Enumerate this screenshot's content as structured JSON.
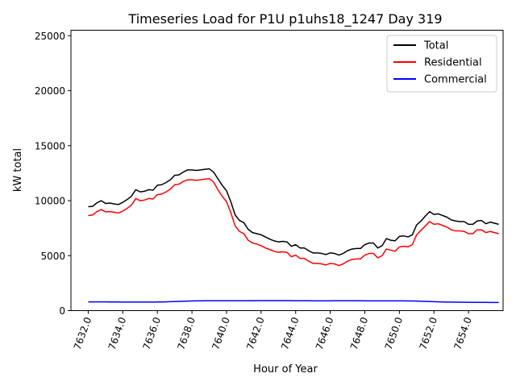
{
  "chart_data": {
    "type": "line",
    "title": "Timeseries Load for P1U p1uhs18_1247  Day 319",
    "xlabel": "Hour of Year",
    "ylabel": "kW total",
    "xlim": [
      7631.0,
      7656.0
    ],
    "ylim": [
      0,
      25500
    ],
    "xticks": [
      {
        "value": 7632,
        "label": "7632.0"
      },
      {
        "value": 7634,
        "label": "7634.0"
      },
      {
        "value": 7636,
        "label": "7636.0"
      },
      {
        "value": 7638,
        "label": "7638.0"
      },
      {
        "value": 7640,
        "label": "7640.0"
      },
      {
        "value": 7642,
        "label": "7642.0"
      },
      {
        "value": 7644,
        "label": "7644.0"
      },
      {
        "value": 7646,
        "label": "7646.0"
      },
      {
        "value": 7648,
        "label": "7648.0"
      },
      {
        "value": 7650,
        "label": "7650.0"
      },
      {
        "value": 7652,
        "label": "7652.0"
      },
      {
        "value": 7654,
        "label": "7654.0"
      }
    ],
    "yticks": [
      {
        "value": 0,
        "label": "0"
      },
      {
        "value": 5000,
        "label": "5000"
      },
      {
        "value": 10000,
        "label": "10000"
      },
      {
        "value": 15000,
        "label": "15000"
      },
      {
        "value": 20000,
        "label": "20000"
      },
      {
        "value": 25000,
        "label": "25000"
      }
    ],
    "legend_position": "top-right",
    "x": [
      7632.0,
      7632.25,
      7632.5,
      7632.75,
      7633.0,
      7633.25,
      7633.5,
      7633.75,
      7634.0,
      7634.25,
      7634.5,
      7634.75,
      7635.0,
      7635.25,
      7635.5,
      7635.75,
      7636.0,
      7636.25,
      7636.5,
      7636.75,
      7637.0,
      7637.25,
      7637.5,
      7637.75,
      7638.0,
      7638.25,
      7638.5,
      7638.75,
      7639.0,
      7639.25,
      7639.5,
      7639.75,
      7640.0,
      7640.25,
      7640.5,
      7640.75,
      7641.0,
      7641.25,
      7641.5,
      7641.75,
      7642.0,
      7642.25,
      7642.5,
      7642.75,
      7643.0,
      7643.25,
      7643.5,
      7643.75,
      7644.0,
      7644.25,
      7644.5,
      7644.75,
      7645.0,
      7645.25,
      7645.5,
      7645.75,
      7646.0,
      7646.25,
      7646.5,
      7646.75,
      7647.0,
      7647.25,
      7647.5,
      7647.75,
      7648.0,
      7648.25,
      7648.5,
      7648.75,
      7649.0,
      7649.25,
      7649.5,
      7649.75,
      7650.0,
      7650.25,
      7650.5,
      7650.75,
      7651.0,
      7651.25,
      7651.5,
      7651.75,
      7652.0,
      7652.25,
      7652.5,
      7652.75,
      7653.0,
      7653.25,
      7653.5,
      7653.75,
      7654.0,
      7654.25,
      7654.5,
      7654.75,
      7655.0,
      7655.25,
      7655.5,
      7655.75
    ],
    "series": [
      {
        "name": "Total",
        "color": "#000000",
        "values": [
          9450,
          9480,
          9800,
          10000,
          9750,
          9780,
          9700,
          9650,
          9850,
          10100,
          10400,
          11000,
          10800,
          10850,
          11000,
          10950,
          11400,
          11450,
          11650,
          11900,
          12300,
          12350,
          12600,
          12800,
          12800,
          12750,
          12800,
          12850,
          12900,
          12600,
          12000,
          11400,
          10900,
          9900,
          8700,
          8200,
          8000,
          7400,
          7100,
          7000,
          6900,
          6700,
          6500,
          6350,
          6250,
          6300,
          6250,
          5850,
          6000,
          5700,
          5700,
          5450,
          5250,
          5250,
          5200,
          5100,
          5250,
          5200,
          5050,
          5200,
          5450,
          5600,
          5650,
          5650,
          6000,
          6150,
          6150,
          5700,
          5900,
          6550,
          6400,
          6350,
          6750,
          6800,
          6700,
          6900,
          7800,
          8150,
          8600,
          9000,
          8750,
          8800,
          8650,
          8500,
          8250,
          8150,
          8100,
          8100,
          7850,
          7850,
          8150,
          8200,
          7900,
          8050,
          7950,
          7850
        ]
      },
      {
        "name": "Residential",
        "color": "#ff0000",
        "values": [
          8650,
          8700,
          9000,
          9200,
          8980,
          9000,
          8950,
          8880,
          9050,
          9300,
          9600,
          10200,
          10000,
          10050,
          10200,
          10150,
          10550,
          10600,
          10800,
          11050,
          11450,
          11500,
          11750,
          11900,
          11900,
          11850,
          11900,
          11950,
          12000,
          11700,
          11000,
          10400,
          9900,
          8900,
          7700,
          7200,
          7000,
          6400,
          6150,
          6050,
          5900,
          5700,
          5550,
          5400,
          5300,
          5350,
          5300,
          4900,
          5050,
          4750,
          4750,
          4500,
          4300,
          4300,
          4250,
          4150,
          4300,
          4250,
          4100,
          4250,
          4500,
          4650,
          4700,
          4700,
          5050,
          5200,
          5200,
          4800,
          5000,
          5600,
          5500,
          5400,
          5800,
          5850,
          5800,
          6000,
          6900,
          7300,
          7700,
          8100,
          7850,
          7900,
          7750,
          7600,
          7350,
          7250,
          7250,
          7200,
          7000,
          7000,
          7350,
          7350,
          7100,
          7200,
          7100,
          7000
        ]
      },
      {
        "name": "Commercial",
        "color": "#0000ff",
        "values": [
          800,
          798,
          797,
          795,
          793,
          790,
          788,
          785,
          782,
          780,
          778,
          776,
          775,
          775,
          777,
          780,
          785,
          790,
          800,
          812,
          825,
          840,
          855,
          868,
          878,
          885,
          890,
          895,
          898,
          900,
          900,
          898,
          896,
          895,
          895,
          896,
          898,
          900,
          902,
          904,
          905,
          905,
          905,
          905,
          905,
          905,
          904,
          903,
          902,
          900,
          898,
          895,
          892,
          890,
          888,
          888,
          890,
          893,
          896,
          898,
          898,
          897,
          895,
          893,
          890,
          888,
          886,
          885,
          885,
          885,
          885,
          886,
          886,
          886,
          884,
          880,
          870,
          855,
          840,
          825,
          812,
          800,
          790,
          782,
          775,
          770,
          765,
          760,
          757,
          755,
          752,
          750,
          748,
          745,
          742,
          740
        ]
      }
    ]
  }
}
